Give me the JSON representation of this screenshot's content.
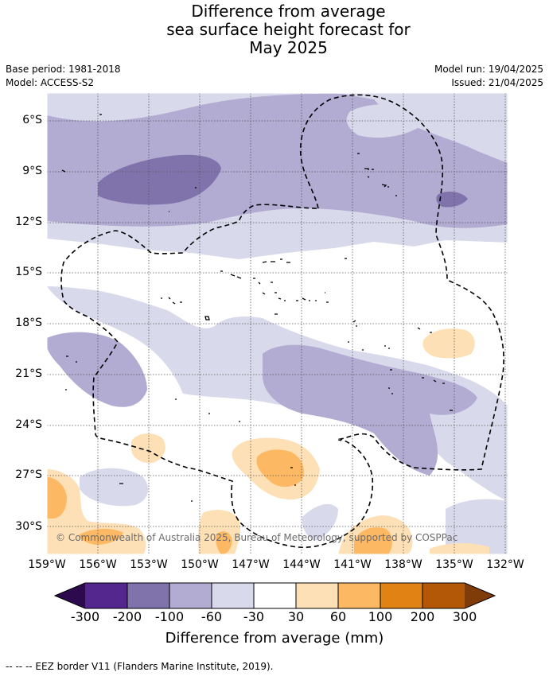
{
  "title": {
    "line1": "Difference from average",
    "line2": "sea surface height forecast for",
    "line3": "May 2025"
  },
  "meta": {
    "base_period": "Base period: 1981-2018",
    "model": "Model: ACCESS-S2",
    "model_run": "Model run: 19/04/2025",
    "issued": "Issued: 21/04/2025"
  },
  "map": {
    "latitude_labels": [
      "6°S",
      "9°S",
      "12°S",
      "15°S",
      "18°S",
      "21°S",
      "24°S",
      "27°S",
      "30°S"
    ],
    "longitude_labels": [
      "159°W",
      "156°W",
      "153°W",
      "150°W",
      "147°W",
      "144°W",
      "141°W",
      "138°W",
      "135°W",
      "132°W"
    ],
    "copyright": "© Commonwealth of Australia 2025, Bureau of Meteorology, supported by COSPPac"
  },
  "colorbar": {
    "title": "Difference from average (mm)",
    "tick_labels": [
      "-300",
      "-200",
      "-100",
      "-60",
      "-30",
      "30",
      "60",
      "100",
      "200",
      "300"
    ],
    "under_color": "#2d0a4e",
    "over_color": "#7f3b08",
    "colors": [
      "#54278f",
      "#8073ac",
      "#b2abd2",
      "#d8daeb",
      "#ffffff",
      "#fee0b6",
      "#fdb863",
      "#e08214",
      "#b35806"
    ]
  },
  "legend_note": "--  --  -- EEZ border V11 (Flanders Marine Institute, 2019)."
}
